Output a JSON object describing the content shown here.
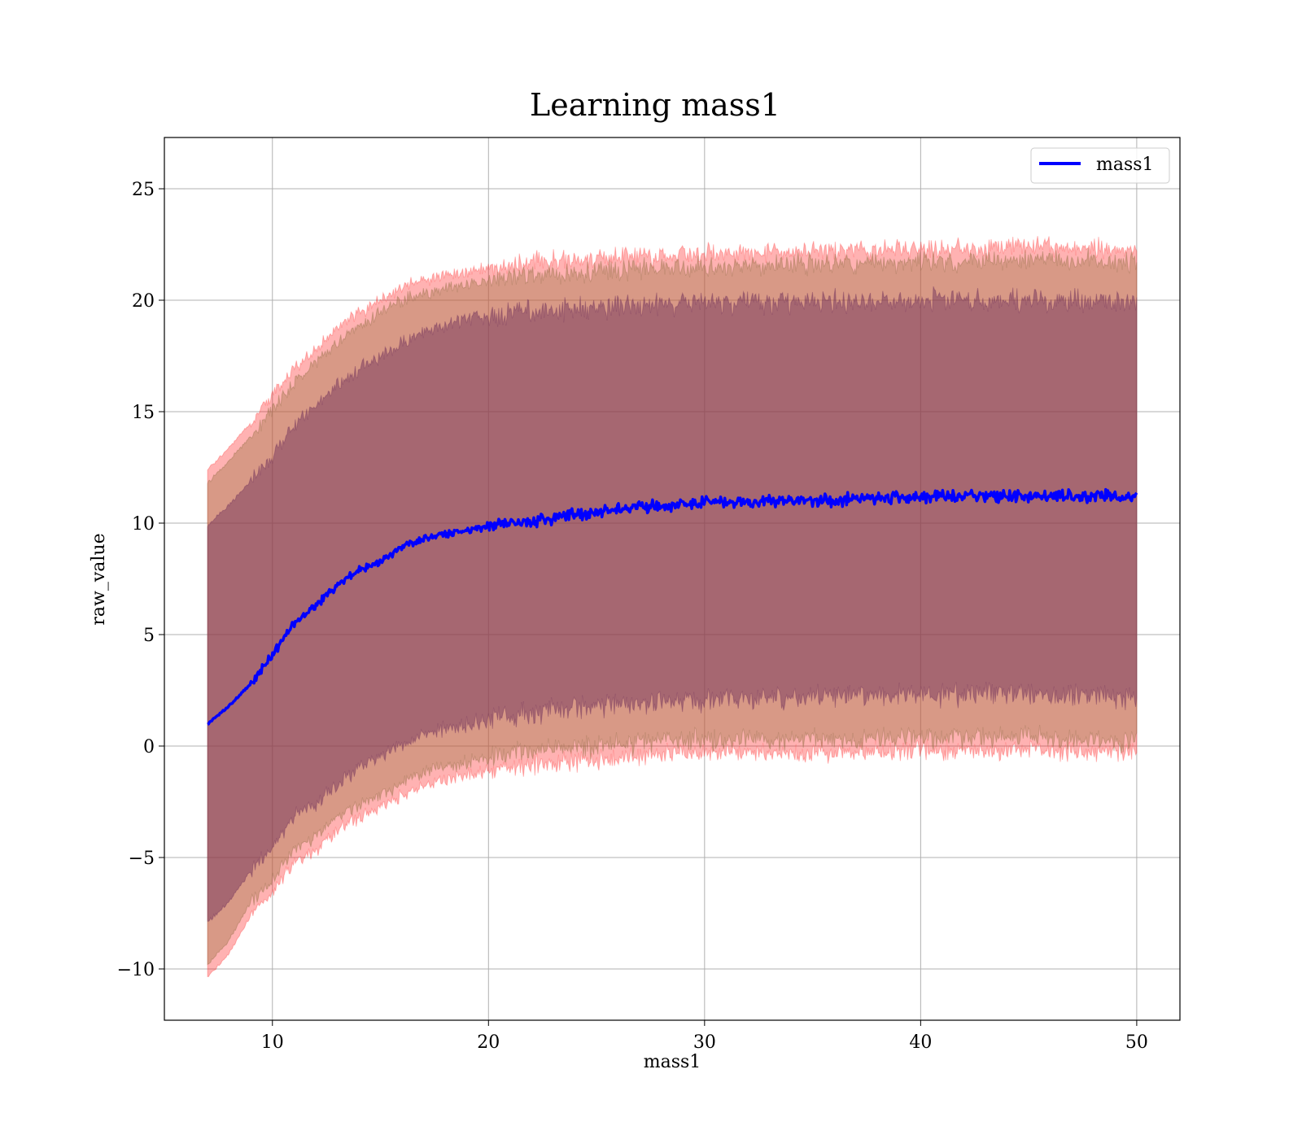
{
  "chart_data": {
    "type": "line",
    "title": "Learning mass1",
    "xlabel": "mass1",
    "ylabel": "raw_value",
    "xlim": [
      5,
      52
    ],
    "ylim": [
      -12.3,
      27.3
    ],
    "xticks": [
      10,
      20,
      30,
      40,
      50
    ],
    "yticks": [
      -10,
      -5,
      0,
      5,
      10,
      15,
      20,
      25
    ],
    "ytick_labels": [
      "−10",
      "−5",
      "0",
      "5",
      "10",
      "15",
      "20",
      "25"
    ],
    "grid": true,
    "legend_position": "top-right",
    "colors": {
      "line": "#0000ff",
      "band_outer": "#ff0000",
      "band_middle": "#c0a070",
      "band_inner": "#6a3050"
    },
    "series": [
      {
        "name": "mass1",
        "x": [
          7,
          8,
          9,
          10,
          11,
          12,
          13,
          14,
          15,
          16,
          17,
          18,
          20,
          22,
          25,
          28,
          30,
          35,
          40,
          45,
          50
        ],
        "values": [
          1.0,
          1.8,
          2.8,
          4.1,
          5.5,
          6.3,
          7.2,
          7.9,
          8.3,
          8.9,
          9.3,
          9.5,
          9.9,
          10.1,
          10.5,
          10.8,
          10.9,
          11.0,
          11.2,
          11.2,
          11.2
        ]
      }
    ],
    "bands": [
      {
        "x": [
          7,
          8,
          9,
          10,
          11,
          12,
          13,
          14,
          15,
          16,
          17,
          18,
          20,
          22,
          25,
          28,
          30,
          35,
          40,
          45,
          50
        ],
        "lower": [
          -10.4,
          -9.3,
          -7.6,
          -6.6,
          -5.2,
          -4.7,
          -3.8,
          -3.2,
          -2.8,
          -2.2,
          -1.8,
          -1.5,
          -1.1,
          -0.8,
          -0.6,
          -0.4,
          -0.3,
          -0.3,
          -0.2,
          -0.2,
          -0.3
        ],
        "upper": [
          12.4,
          13.4,
          14.5,
          15.7,
          16.9,
          17.8,
          18.7,
          19.4,
          20.0,
          20.6,
          20.9,
          21.1,
          21.5,
          21.7,
          21.9,
          22.0,
          22.1,
          22.2,
          22.3,
          22.4,
          22.3
        ]
      },
      {
        "x": [
          7,
          8,
          9,
          10,
          11,
          12,
          13,
          14,
          15,
          16,
          17,
          18,
          20,
          22,
          25,
          28,
          30,
          35,
          40,
          45,
          50
        ],
        "lower": [
          -9.8,
          -8.7,
          -7.0,
          -6.0,
          -4.6,
          -4.1,
          -3.2,
          -2.6,
          -2.2,
          -1.6,
          -1.2,
          -0.9,
          -0.5,
          -0.2,
          0.0,
          0.2,
          0.3,
          0.3,
          0.4,
          0.4,
          0.2
        ],
        "upper": [
          11.8,
          12.8,
          13.9,
          15.1,
          16.3,
          17.2,
          18.1,
          18.8,
          19.4,
          20.0,
          20.3,
          20.5,
          20.9,
          21.1,
          21.3,
          21.4,
          21.5,
          21.6,
          21.7,
          21.8,
          21.7
        ]
      },
      {
        "x": [
          7,
          8,
          9,
          10,
          11,
          12,
          13,
          14,
          15,
          16,
          17,
          18,
          20,
          22,
          25,
          28,
          30,
          35,
          40,
          45,
          50
        ],
        "lower": [
          -7.9,
          -7.0,
          -5.6,
          -4.6,
          -3.1,
          -2.6,
          -1.7,
          -1.0,
          -0.5,
          0.1,
          0.5,
          0.8,
          1.2,
          1.5,
          1.8,
          2.0,
          2.1,
          2.2,
          2.3,
          2.3,
          2.2
        ],
        "upper": [
          9.9,
          10.8,
          11.9,
          13.0,
          14.4,
          15.3,
          16.2,
          16.9,
          17.5,
          18.1,
          18.6,
          18.9,
          19.3,
          19.5,
          19.7,
          19.8,
          19.9,
          19.9,
          20.0,
          20.0,
          19.9
        ]
      }
    ]
  }
}
